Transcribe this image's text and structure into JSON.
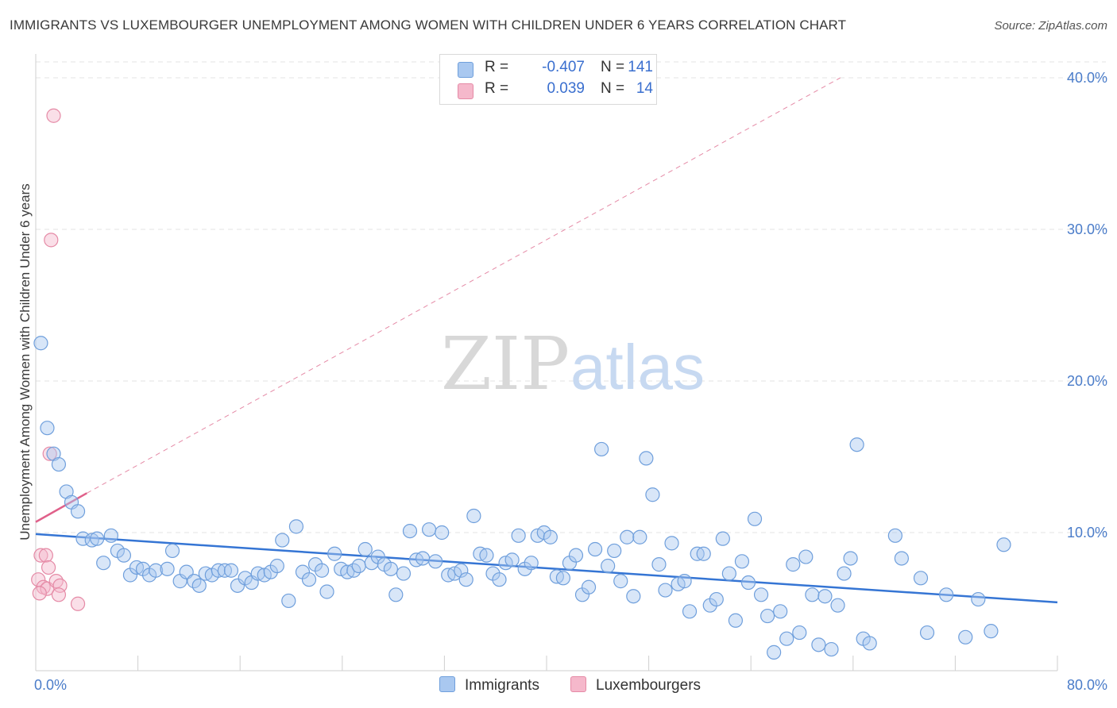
{
  "title": "IMMIGRANTS VS LUXEMBOURGER UNEMPLOYMENT AMONG WOMEN WITH CHILDREN UNDER 6 YEARS CORRELATION CHART",
  "source": "Source: ZipAtlas.com",
  "watermark": {
    "zip": "ZIP",
    "atlas": "atlas"
  },
  "legend": {
    "rows": [
      {
        "r_label": "R =",
        "r_value": "-0.407",
        "n_label": "N =",
        "n_value": "141",
        "color": "#a9c8f0"
      },
      {
        "r_label": "R =",
        "r_value": "0.039",
        "n_label": "N =",
        "n_value": "14",
        "color": "#f5b8cb"
      }
    ]
  },
  "colors": {
    "immigrants_fill": "#a9c8f0",
    "immigrants_stroke": "#6f9fdc",
    "immigrants_line": "#3575d4",
    "lux_fill": "#f5b8cb",
    "lux_stroke": "#e58aa6",
    "lux_line": "#e0608a",
    "axis_label": "#4a7cc9"
  },
  "chart_data": {
    "type": "scatter",
    "title": "IMMIGRANTS VS LUXEMBOURGER UNEMPLOYMENT AMONG WOMEN WITH CHILDREN UNDER 6 YEARS CORRELATION CHART",
    "xlabel": "",
    "ylabel": "Unemployment Among Women with Children Under 6 years",
    "xlim": [
      0,
      80
    ],
    "ylim": [
      0,
      42
    ],
    "x_tick_labels": [
      "0.0%",
      "80.0%"
    ],
    "y_ticks": [
      10,
      20,
      30,
      40
    ],
    "y_tick_labels": [
      "10.0%",
      "20.0%",
      "30.0%",
      "40.0%"
    ],
    "grid": "horizontal dashed",
    "series": [
      {
        "name": "Immigrants",
        "trend": {
          "x": [
            0,
            80
          ],
          "y": [
            9.9,
            5.4
          ]
        },
        "points": [
          [
            0.4,
            22.5
          ],
          [
            0.9,
            16.9
          ],
          [
            1.4,
            15.2
          ],
          [
            1.8,
            14.5
          ],
          [
            2.4,
            12.7
          ],
          [
            2.8,
            12.0
          ],
          [
            3.3,
            11.4
          ],
          [
            3.7,
            9.6
          ],
          [
            4.4,
            9.5
          ],
          [
            4.8,
            9.6
          ],
          [
            5.3,
            8.0
          ],
          [
            5.9,
            9.8
          ],
          [
            6.4,
            8.8
          ],
          [
            6.9,
            8.5
          ],
          [
            7.4,
            7.2
          ],
          [
            7.9,
            7.7
          ],
          [
            8.4,
            7.6
          ],
          [
            8.9,
            7.2
          ],
          [
            9.4,
            7.5
          ],
          [
            10.3,
            7.6
          ],
          [
            10.7,
            8.8
          ],
          [
            11.3,
            6.8
          ],
          [
            11.8,
            7.4
          ],
          [
            12.4,
            6.8
          ],
          [
            12.8,
            6.5
          ],
          [
            13.3,
            7.3
          ],
          [
            13.8,
            7.2
          ],
          [
            14.3,
            7.5
          ],
          [
            14.8,
            7.5
          ],
          [
            15.3,
            7.5
          ],
          [
            15.8,
            6.5
          ],
          [
            16.4,
            7.0
          ],
          [
            16.9,
            6.7
          ],
          [
            17.4,
            7.3
          ],
          [
            17.9,
            7.2
          ],
          [
            18.4,
            7.4
          ],
          [
            18.9,
            7.8
          ],
          [
            19.3,
            9.5
          ],
          [
            19.8,
            5.5
          ],
          [
            20.4,
            10.4
          ],
          [
            20.9,
            7.4
          ],
          [
            21.4,
            6.9
          ],
          [
            21.9,
            7.9
          ],
          [
            22.4,
            7.5
          ],
          [
            22.8,
            6.1
          ],
          [
            23.4,
            8.6
          ],
          [
            23.9,
            7.6
          ],
          [
            24.4,
            7.4
          ],
          [
            24.9,
            7.5
          ],
          [
            25.3,
            7.8
          ],
          [
            25.8,
            8.9
          ],
          [
            26.3,
            8.0
          ],
          [
            26.8,
            8.4
          ],
          [
            27.3,
            7.9
          ],
          [
            27.8,
            7.6
          ],
          [
            28.2,
            5.9
          ],
          [
            28.8,
            7.3
          ],
          [
            29.3,
            10.1
          ],
          [
            29.8,
            8.2
          ],
          [
            30.3,
            8.3
          ],
          [
            30.8,
            10.2
          ],
          [
            31.3,
            8.1
          ],
          [
            31.8,
            10.0
          ],
          [
            32.3,
            7.2
          ],
          [
            32.8,
            7.3
          ],
          [
            33.3,
            7.5
          ],
          [
            33.7,
            6.9
          ],
          [
            34.3,
            11.1
          ],
          [
            34.8,
            8.6
          ],
          [
            35.3,
            8.5
          ],
          [
            35.8,
            7.3
          ],
          [
            36.3,
            6.9
          ],
          [
            36.8,
            8.0
          ],
          [
            37.3,
            8.2
          ],
          [
            37.8,
            9.8
          ],
          [
            38.3,
            7.6
          ],
          [
            38.8,
            8.0
          ],
          [
            39.3,
            9.8
          ],
          [
            39.8,
            10.0
          ],
          [
            40.3,
            9.7
          ],
          [
            40.8,
            7.1
          ],
          [
            41.3,
            7.0
          ],
          [
            41.8,
            8.0
          ],
          [
            42.3,
            8.5
          ],
          [
            42.8,
            5.9
          ],
          [
            43.3,
            6.4
          ],
          [
            43.8,
            8.9
          ],
          [
            44.3,
            15.5
          ],
          [
            44.8,
            7.8
          ],
          [
            45.3,
            8.8
          ],
          [
            45.8,
            6.8
          ],
          [
            46.3,
            9.7
          ],
          [
            46.8,
            5.8
          ],
          [
            47.3,
            9.7
          ],
          [
            47.8,
            14.9
          ],
          [
            48.3,
            12.5
          ],
          [
            48.8,
            7.9
          ],
          [
            49.3,
            6.2
          ],
          [
            49.8,
            9.3
          ],
          [
            50.3,
            6.6
          ],
          [
            50.8,
            6.8
          ],
          [
            51.2,
            4.8
          ],
          [
            51.8,
            8.6
          ],
          [
            52.3,
            8.6
          ],
          [
            52.8,
            5.2
          ],
          [
            53.3,
            5.6
          ],
          [
            53.8,
            9.6
          ],
          [
            54.3,
            7.3
          ],
          [
            54.8,
            4.2
          ],
          [
            55.3,
            8.1
          ],
          [
            55.8,
            6.7
          ],
          [
            56.3,
            10.9
          ],
          [
            56.8,
            5.9
          ],
          [
            57.3,
            4.5
          ],
          [
            57.8,
            2.1
          ],
          [
            58.3,
            4.8
          ],
          [
            58.8,
            3.0
          ],
          [
            59.3,
            7.9
          ],
          [
            59.8,
            3.4
          ],
          [
            60.3,
            8.4
          ],
          [
            60.8,
            5.9
          ],
          [
            61.3,
            2.6
          ],
          [
            61.8,
            5.8
          ],
          [
            62.3,
            2.3
          ],
          [
            62.8,
            5.2
          ],
          [
            63.3,
            7.3
          ],
          [
            63.8,
            8.3
          ],
          [
            64.3,
            15.8
          ],
          [
            64.8,
            3.0
          ],
          [
            65.3,
            2.7
          ],
          [
            67.3,
            9.8
          ],
          [
            67.8,
            8.3
          ],
          [
            69.3,
            7.0
          ],
          [
            69.8,
            3.4
          ],
          [
            71.3,
            5.9
          ],
          [
            72.8,
            3.1
          ],
          [
            73.8,
            5.6
          ],
          [
            74.8,
            3.5
          ],
          [
            75.8,
            9.2
          ]
        ]
      },
      {
        "name": "Luxembourgers",
        "trend": {
          "x": [
            0,
            4.0
          ],
          "y": [
            10.7,
            12.6
          ]
        },
        "trend_extended": {
          "x": [
            4.0,
            63.0
          ],
          "y": [
            12.6,
            40.0
          ]
        },
        "points": [
          [
            1.4,
            37.5
          ],
          [
            1.2,
            29.3
          ],
          [
            1.1,
            15.2
          ],
          [
            0.4,
            8.5
          ],
          [
            0.8,
            8.5
          ],
          [
            1.0,
            7.7
          ],
          [
            0.2,
            6.9
          ],
          [
            0.6,
            6.4
          ],
          [
            0.9,
            6.3
          ],
          [
            1.6,
            6.8
          ],
          [
            1.9,
            6.5
          ],
          [
            0.3,
            6.0
          ],
          [
            1.8,
            5.9
          ],
          [
            3.3,
            5.3
          ]
        ]
      }
    ]
  }
}
